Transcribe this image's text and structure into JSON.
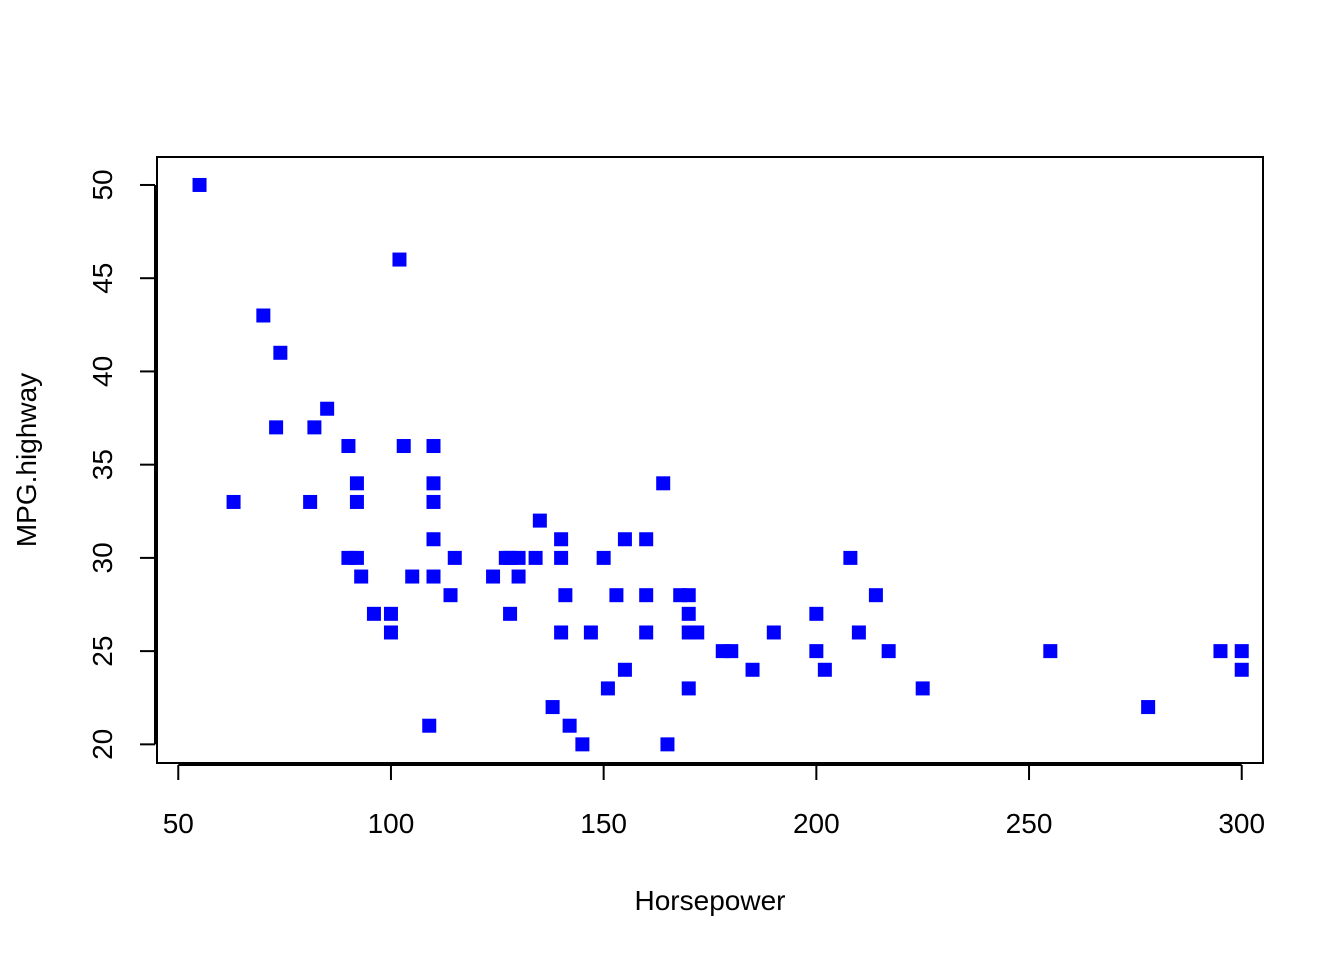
{
  "chart_data": {
    "type": "scatter",
    "title": "",
    "xlabel": "Horsepower",
    "ylabel": "MPG.highway",
    "xlim": [
      45,
      305
    ],
    "ylim": [
      19,
      51.5
    ],
    "xticks": [
      50,
      100,
      150,
      200,
      250,
      300
    ],
    "yticks": [
      20,
      25,
      30,
      35,
      40,
      45,
      50
    ],
    "marker": "square",
    "color": "#0000ff",
    "grid": false,
    "points": [
      [
        55,
        50
      ],
      [
        63,
        33
      ],
      [
        70,
        43
      ],
      [
        73,
        37
      ],
      [
        74,
        41
      ],
      [
        81,
        33
      ],
      [
        82,
        37
      ],
      [
        85,
        38
      ],
      [
        90,
        36
      ],
      [
        90,
        30
      ],
      [
        92,
        34
      ],
      [
        92,
        33
      ],
      [
        92,
        30
      ],
      [
        93,
        29
      ],
      [
        96,
        27
      ],
      [
        100,
        27
      ],
      [
        100,
        26
      ],
      [
        102,
        46
      ],
      [
        103,
        36
      ],
      [
        105,
        29
      ],
      [
        109,
        21
      ],
      [
        110,
        36
      ],
      [
        110,
        34
      ],
      [
        110,
        33
      ],
      [
        110,
        31
      ],
      [
        110,
        29
      ],
      [
        114,
        28
      ],
      [
        115,
        30
      ],
      [
        124,
        29
      ],
      [
        127,
        30
      ],
      [
        128,
        27
      ],
      [
        128,
        30
      ],
      [
        130,
        30
      ],
      [
        130,
        29
      ],
      [
        134,
        30
      ],
      [
        135,
        32
      ],
      [
        138,
        22
      ],
      [
        140,
        31
      ],
      [
        140,
        30
      ],
      [
        140,
        26
      ],
      [
        141,
        28
      ],
      [
        142,
        21
      ],
      [
        145,
        20
      ],
      [
        147,
        26
      ],
      [
        150,
        30
      ],
      [
        151,
        23
      ],
      [
        153,
        28
      ],
      [
        155,
        31
      ],
      [
        155,
        24
      ],
      [
        160,
        31
      ],
      [
        160,
        28
      ],
      [
        160,
        26
      ],
      [
        164,
        34
      ],
      [
        165,
        20
      ],
      [
        168,
        28
      ],
      [
        170,
        28
      ],
      [
        170,
        27
      ],
      [
        170,
        26
      ],
      [
        170,
        23
      ],
      [
        172,
        26
      ],
      [
        178,
        25
      ],
      [
        180,
        25
      ],
      [
        185,
        24
      ],
      [
        190,
        26
      ],
      [
        200,
        27
      ],
      [
        200,
        25
      ],
      [
        202,
        24
      ],
      [
        208,
        30
      ],
      [
        210,
        26
      ],
      [
        214,
        28
      ],
      [
        217,
        25
      ],
      [
        225,
        23
      ],
      [
        255,
        25
      ],
      [
        278,
        22
      ],
      [
        295,
        25
      ],
      [
        300,
        25
      ],
      [
        300,
        24
      ]
    ]
  }
}
